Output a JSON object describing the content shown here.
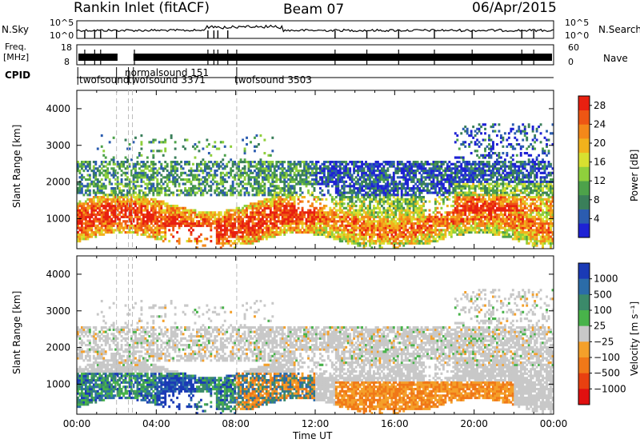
{
  "header": {
    "title": "Rankin Inlet (fitACF)",
    "beam": "Beam 07",
    "date": "06/Apr/2015"
  },
  "param_panels": {
    "nsky_label": "N.Sky",
    "nsearch_label": "N.Search",
    "noise_ticks": [
      "10^5",
      "10^0"
    ],
    "noise_ticks_right": [
      "10^5",
      "10^0"
    ],
    "freq_label_1": "Freq.",
    "freq_label_2": "[MHz]",
    "freq_ticks": [
      "18",
      "8"
    ],
    "nave_label": "Nave",
    "nave_ticks": [
      "60",
      "0"
    ],
    "cpid_label": "CPID",
    "cpid_names": [
      "twofsound",
      "normalsound 151",
      "twofsound 3371",
      "twofsound 3503"
    ]
  },
  "chart_data": [
    {
      "type": "heatmap",
      "title": "",
      "xlabel": "",
      "ylabel": "Slant Range [km]",
      "x_range_hours": [
        0,
        24
      ],
      "ylim": [
        180,
        4500
      ],
      "y_ticks": [
        1000,
        2000,
        3000,
        4000
      ],
      "colorbar": {
        "label": "Power [dB]",
        "ticks": [
          4,
          8,
          12,
          16,
          20,
          24,
          28
        ],
        "range": [
          0,
          30
        ],
        "colors": [
          "#1e22d4",
          "#2b5cb0",
          "#3a7f5a",
          "#4da24a",
          "#8fcf3c",
          "#d8e030",
          "#f2b21c",
          "#f4881a",
          "#ee5614",
          "#e82010"
        ]
      }
    },
    {
      "type": "heatmap",
      "title": "",
      "xlabel": "Time UT",
      "ylabel": "Slant Range [km]",
      "x_range_hours": [
        0,
        24
      ],
      "x_ticks": [
        "00:00",
        "04:00",
        "08:00",
        "12:00",
        "16:00",
        "20:00",
        "00:00"
      ],
      "ylim": [
        180,
        4500
      ],
      "y_ticks": [
        1000,
        2000,
        3000,
        4000
      ],
      "colorbar": {
        "label": "Velocity [m s⁻¹]",
        "ticks": [
          "1000",
          "500",
          "100",
          "25",
          "−25",
          "−100",
          "−500",
          "−1000"
        ],
        "colors": [
          "#1a3ab6",
          "#2b6ca8",
          "#3b8a6a",
          "#48b34a",
          "#c8c8c8",
          "#f4a02a",
          "#f07818",
          "#e84010",
          "#e01010"
        ]
      }
    }
  ]
}
